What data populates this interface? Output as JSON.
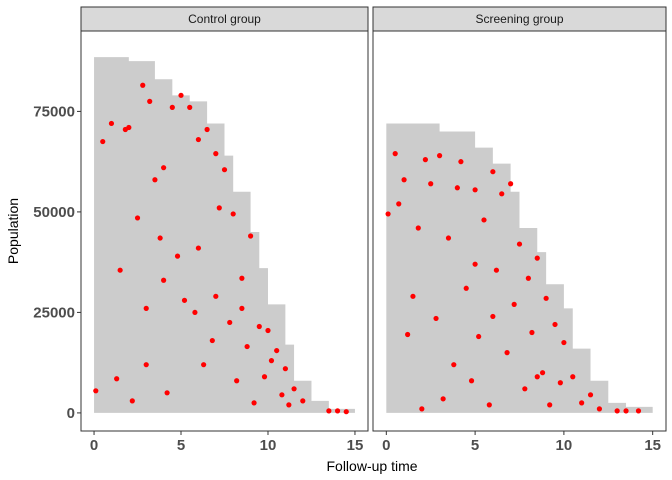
{
  "chart_data": {
    "type": "scatter",
    "xlabel": "Follow-up time",
    "ylabel": "Population",
    "xlim": [
      -0.75,
      15.75
    ],
    "ylim": [
      -4500,
      95000
    ],
    "x_ticks": [
      0,
      5,
      10,
      15
    ],
    "y_ticks": [
      0,
      25000,
      50000,
      75000
    ],
    "y_tick_labels": [
      "0",
      "25000",
      "50000",
      "75000"
    ],
    "point_color": "#ff0000",
    "area_color": "#cccccc",
    "grid": false,
    "panels": [
      {
        "title": "Control group",
        "risk_set_steps": [
          [
            0,
            88500
          ],
          [
            2,
            87500
          ],
          [
            3.5,
            83000
          ],
          [
            4.5,
            79000
          ],
          [
            5.5,
            77500
          ],
          [
            6.5,
            72000
          ],
          [
            7.5,
            64000
          ],
          [
            8,
            55000
          ],
          [
            9,
            45000
          ],
          [
            9.5,
            36000
          ],
          [
            10,
            27000
          ],
          [
            11,
            17000
          ],
          [
            11.5,
            8000
          ],
          [
            12.5,
            3000
          ],
          [
            13.5,
            1000
          ],
          [
            15,
            0
          ]
        ],
        "points": [
          [
            0.1,
            5500
          ],
          [
            0.5,
            67500
          ],
          [
            1,
            72000
          ],
          [
            1.3,
            8500
          ],
          [
            1.5,
            35500
          ],
          [
            1.8,
            70500
          ],
          [
            2,
            71000
          ],
          [
            2.2,
            3000
          ],
          [
            2.5,
            48500
          ],
          [
            2.8,
            81500
          ],
          [
            3,
            12000
          ],
          [
            3.2,
            77500
          ],
          [
            3.5,
            58000
          ],
          [
            3.8,
            43500
          ],
          [
            4,
            61000
          ],
          [
            4.2,
            5000
          ],
          [
            4.5,
            76000
          ],
          [
            4.8,
            39000
          ],
          [
            5,
            79000
          ],
          [
            5.2,
            28000
          ],
          [
            5.5,
            76000
          ],
          [
            5.8,
            25000
          ],
          [
            6,
            68000
          ],
          [
            6.3,
            12000
          ],
          [
            6.5,
            70500
          ],
          [
            6.8,
            18000
          ],
          [
            7,
            64500
          ],
          [
            7.2,
            51000
          ],
          [
            7.5,
            60500
          ],
          [
            7.8,
            22500
          ],
          [
            8,
            49500
          ],
          [
            8.2,
            8000
          ],
          [
            8.5,
            33500
          ],
          [
            8.8,
            16500
          ],
          [
            9,
            44000
          ],
          [
            9.2,
            2500
          ],
          [
            9.5,
            21500
          ],
          [
            9.8,
            9000
          ],
          [
            10,
            20500
          ],
          [
            10.2,
            13000
          ],
          [
            10.5,
            15500
          ],
          [
            10.8,
            4500
          ],
          [
            11,
            11000
          ],
          [
            11.2,
            2000
          ],
          [
            11.5,
            6000
          ],
          [
            12,
            3000
          ],
          [
            13.5,
            500
          ],
          [
            14,
            500
          ],
          [
            14.5,
            300
          ],
          [
            3,
            26000
          ],
          [
            4,
            33000
          ],
          [
            6,
            41000
          ],
          [
            7,
            29000
          ],
          [
            8.5,
            26000
          ]
        ]
      },
      {
        "title": "Screening group",
        "risk_set_steps": [
          [
            0,
            72000
          ],
          [
            3,
            70000
          ],
          [
            5,
            66000
          ],
          [
            6,
            62000
          ],
          [
            7,
            55000
          ],
          [
            7.5,
            46000
          ],
          [
            8.5,
            40000
          ],
          [
            9,
            32000
          ],
          [
            10,
            26000
          ],
          [
            10.5,
            16000
          ],
          [
            11.5,
            8000
          ],
          [
            12.5,
            2500
          ],
          [
            13.5,
            1500
          ],
          [
            15,
            0
          ]
        ],
        "points": [
          [
            0.1,
            49500
          ],
          [
            0.5,
            64500
          ],
          [
            0.7,
            52000
          ],
          [
            1,
            58000
          ],
          [
            1.2,
            19500
          ],
          [
            1.5,
            29000
          ],
          [
            1.8,
            46000
          ],
          [
            2,
            1000
          ],
          [
            2.2,
            63000
          ],
          [
            2.5,
            57000
          ],
          [
            2.8,
            23500
          ],
          [
            3,
            64000
          ],
          [
            3.2,
            3500
          ],
          [
            3.5,
            43500
          ],
          [
            3.8,
            12000
          ],
          [
            4,
            56000
          ],
          [
            4.2,
            62500
          ],
          [
            4.5,
            31000
          ],
          [
            4.8,
            8000
          ],
          [
            5,
            55500
          ],
          [
            5.2,
            19000
          ],
          [
            5.5,
            48000
          ],
          [
            5.8,
            2000
          ],
          [
            6,
            60000
          ],
          [
            6.2,
            35500
          ],
          [
            6.5,
            54500
          ],
          [
            6.8,
            15000
          ],
          [
            7,
            57000
          ],
          [
            7.2,
            27000
          ],
          [
            7.5,
            42000
          ],
          [
            7.8,
            6000
          ],
          [
            8,
            33500
          ],
          [
            8.2,
            20000
          ],
          [
            8.5,
            38500
          ],
          [
            8.8,
            10000
          ],
          [
            9,
            28500
          ],
          [
            9.2,
            2000
          ],
          [
            9.5,
            22000
          ],
          [
            9.8,
            7500
          ],
          [
            10,
            17500
          ],
          [
            10.5,
            9000
          ],
          [
            11,
            2500
          ],
          [
            11.5,
            4500
          ],
          [
            12,
            1000
          ],
          [
            13,
            500
          ],
          [
            13.5,
            500
          ],
          [
            14.2,
            500
          ],
          [
            5,
            37000
          ],
          [
            6,
            24000
          ],
          [
            8.5,
            9000
          ]
        ]
      }
    ]
  }
}
